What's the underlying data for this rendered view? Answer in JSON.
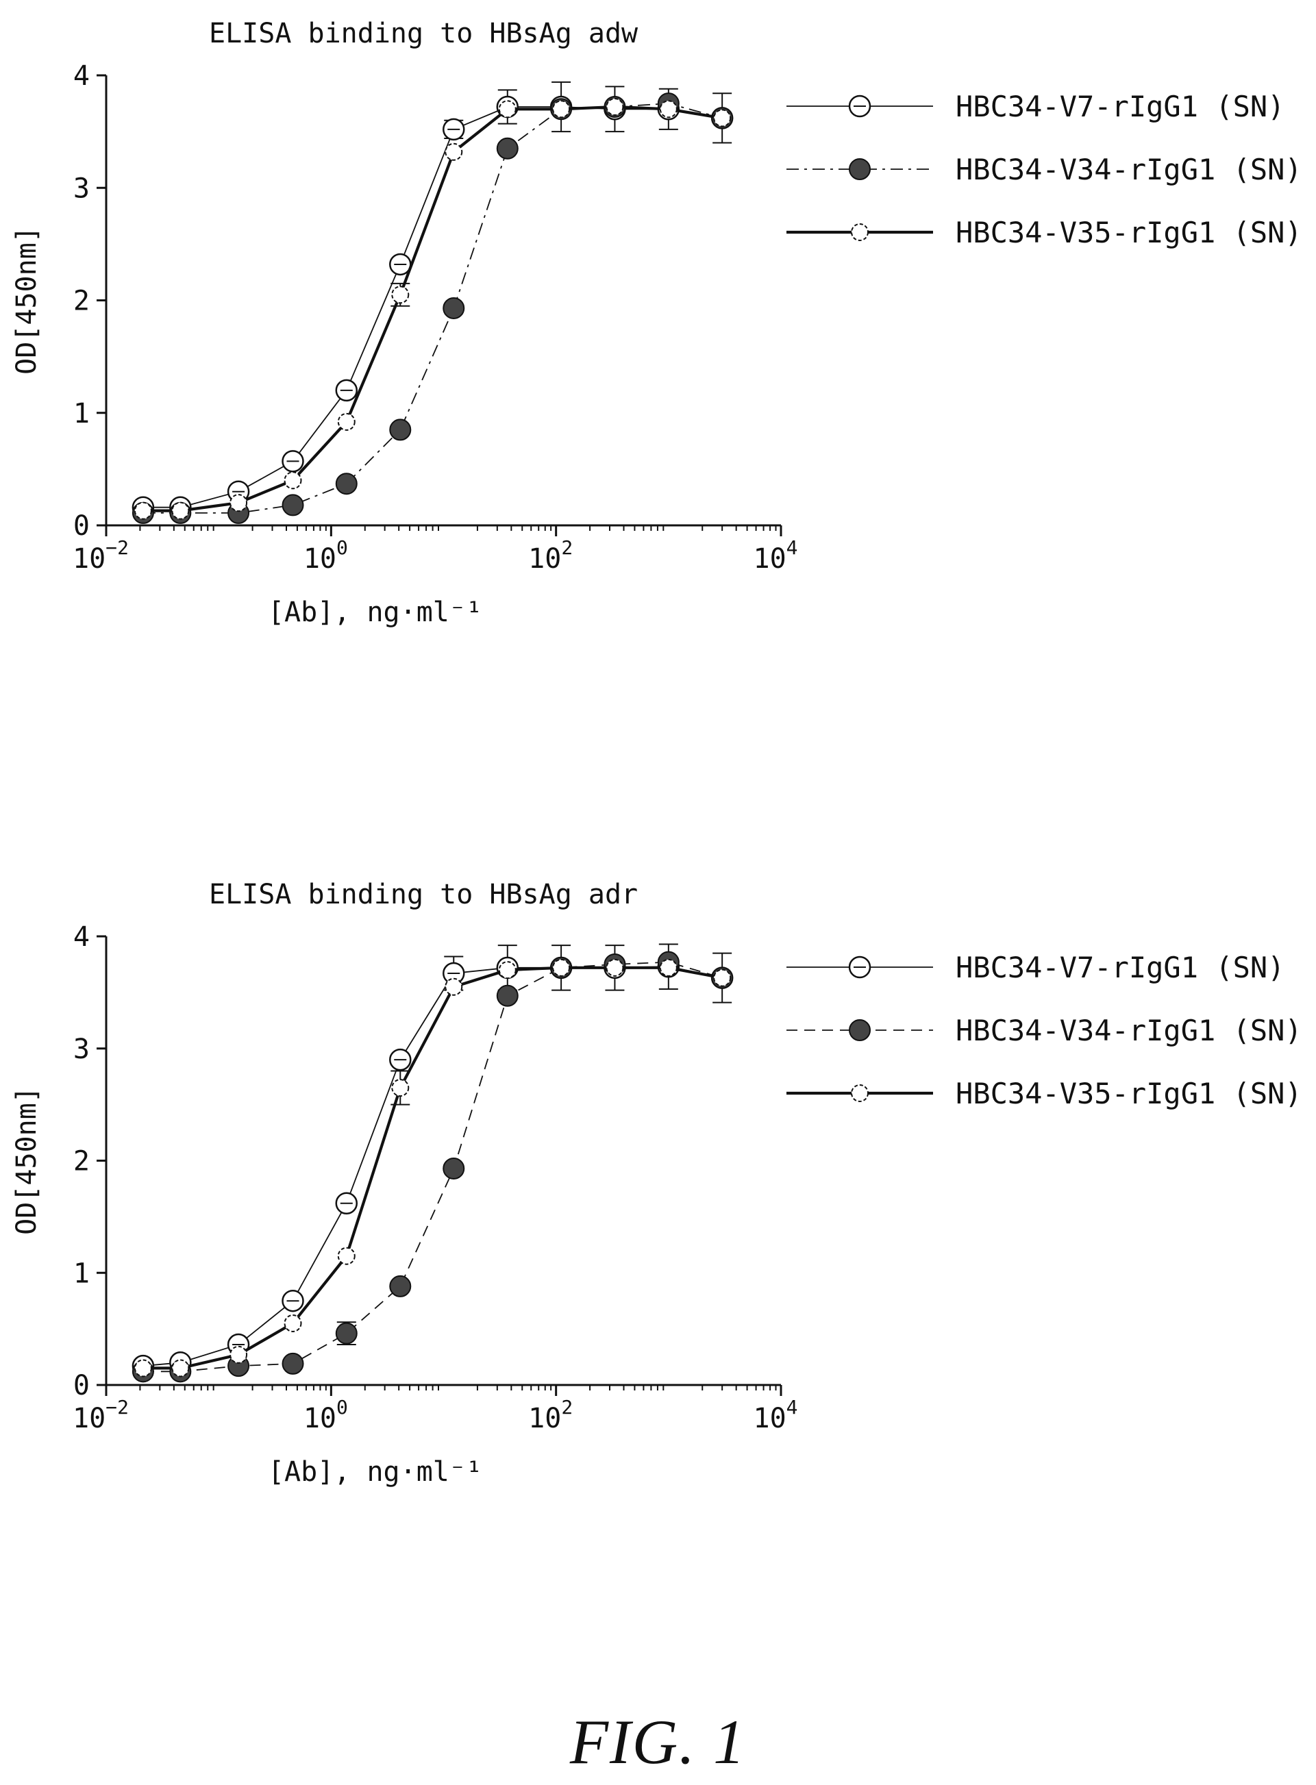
{
  "figure": {
    "caption": "FIG. 1"
  },
  "chart_data": [
    {
      "type": "line",
      "title": "ELISA binding to HBsAg adw",
      "xlabel": "[Ab], ng·ml⁻¹",
      "ylabel": "OD[450nm]",
      "xscale": "log",
      "xlim": [
        0.01,
        10000
      ],
      "ylim": [
        0,
        4
      ],
      "x_ticks": [
        {
          "value": 0.01,
          "base": "10",
          "exp": "−2"
        },
        {
          "value": 1,
          "base": "10",
          "exp": "0"
        },
        {
          "value": 100,
          "base": "10",
          "exp": "2"
        },
        {
          "value": 10000,
          "base": "10",
          "exp": "4"
        }
      ],
      "y_ticks": [
        {
          "value": 0,
          "label": "0"
        },
        {
          "value": 1,
          "label": "1"
        },
        {
          "value": 2,
          "label": "2"
        },
        {
          "value": 3,
          "label": "3"
        },
        {
          "value": 4,
          "label": "4"
        }
      ],
      "legend_position": "right",
      "grid": false,
      "x": [
        0.0213,
        0.0457,
        0.15,
        0.457,
        1.37,
        4.12,
        12.3,
        37,
        111,
        333,
        1000,
        3000
      ],
      "series": [
        {
          "name": "HBC34-V7-rIgG1 (SN)",
          "marker": "open-circle",
          "line": "thin-solid",
          "values": [
            0.16,
            0.16,
            0.3,
            0.57,
            1.2,
            2.32,
            3.52,
            3.72,
            3.72,
            3.7,
            3.7,
            3.62
          ],
          "errors": [
            0,
            0,
            0,
            0,
            0,
            0,
            0.08,
            0.15,
            0.22,
            0.2,
            0.18,
            0.22
          ]
        },
        {
          "name": "HBC34-V34-rIgG1 (SN)",
          "marker": "filled-circle",
          "line": "dash-dot",
          "values": [
            0.11,
            0.11,
            0.11,
            0.18,
            0.37,
            0.85,
            1.93,
            3.35,
            3.7,
            3.72,
            3.75,
            3.62
          ],
          "errors": [
            0,
            0,
            0,
            0,
            0,
            0,
            0,
            0,
            0,
            0,
            0,
            0
          ]
        },
        {
          "name": "HBC34-V35-rIgG1 (SN)",
          "marker": "small-circle",
          "line": "thick-solid",
          "values": [
            0.13,
            0.13,
            0.2,
            0.4,
            0.92,
            2.05,
            3.32,
            3.7,
            3.7,
            3.72,
            3.7,
            3.62
          ],
          "errors": [
            0,
            0,
            0,
            0,
            0,
            0.1,
            0,
            0,
            0,
            0,
            0,
            0
          ]
        }
      ]
    },
    {
      "type": "line",
      "title": "ELISA binding to HBsAg adr",
      "xlabel": "[Ab], ng·ml⁻¹",
      "ylabel": "OD[450nm]",
      "xscale": "log",
      "xlim": [
        0.01,
        10000
      ],
      "ylim": [
        0,
        4
      ],
      "x_ticks": [
        {
          "value": 0.01,
          "base": "10",
          "exp": "−2"
        },
        {
          "value": 1,
          "base": "10",
          "exp": "0"
        },
        {
          "value": 100,
          "base": "10",
          "exp": "2"
        },
        {
          "value": 10000,
          "base": "10",
          "exp": "4"
        }
      ],
      "y_ticks": [
        {
          "value": 0,
          "label": "0"
        },
        {
          "value": 1,
          "label": "1"
        },
        {
          "value": 2,
          "label": "2"
        },
        {
          "value": 3,
          "label": "3"
        },
        {
          "value": 4,
          "label": "4"
        }
      ],
      "legend_position": "right",
      "grid": false,
      "x": [
        0.0213,
        0.0457,
        0.15,
        0.457,
        1.37,
        4.12,
        12.3,
        37,
        111,
        333,
        1000,
        3000
      ],
      "series": [
        {
          "name": "HBC34-V7-rIgG1 (SN)",
          "marker": "open-circle",
          "line": "thin-solid",
          "values": [
            0.17,
            0.2,
            0.36,
            0.75,
            1.62,
            2.9,
            3.67,
            3.72,
            3.72,
            3.72,
            3.73,
            3.63
          ],
          "errors": [
            0,
            0,
            0,
            0,
            0,
            0,
            0.15,
            0.2,
            0.2,
            0.2,
            0.2,
            0.22
          ]
        },
        {
          "name": "HBC34-V34-rIgG1 (SN)",
          "marker": "filled-circle",
          "line": "dashed",
          "values": [
            0.12,
            0.12,
            0.17,
            0.19,
            0.46,
            0.88,
            1.93,
            3.47,
            3.72,
            3.75,
            3.77,
            3.63
          ],
          "errors": [
            0,
            0,
            0,
            0,
            0.1,
            0,
            0,
            0,
            0,
            0,
            0,
            0
          ]
        },
        {
          "name": "HBC34-V35-rIgG1 (SN)",
          "marker": "small-circle",
          "line": "thick-solid",
          "values": [
            0.15,
            0.15,
            0.27,
            0.55,
            1.15,
            2.65,
            3.55,
            3.7,
            3.72,
            3.72,
            3.72,
            3.63
          ],
          "errors": [
            0,
            0,
            0,
            0,
            0,
            0.15,
            0,
            0,
            0,
            0,
            0,
            0
          ]
        }
      ]
    }
  ]
}
